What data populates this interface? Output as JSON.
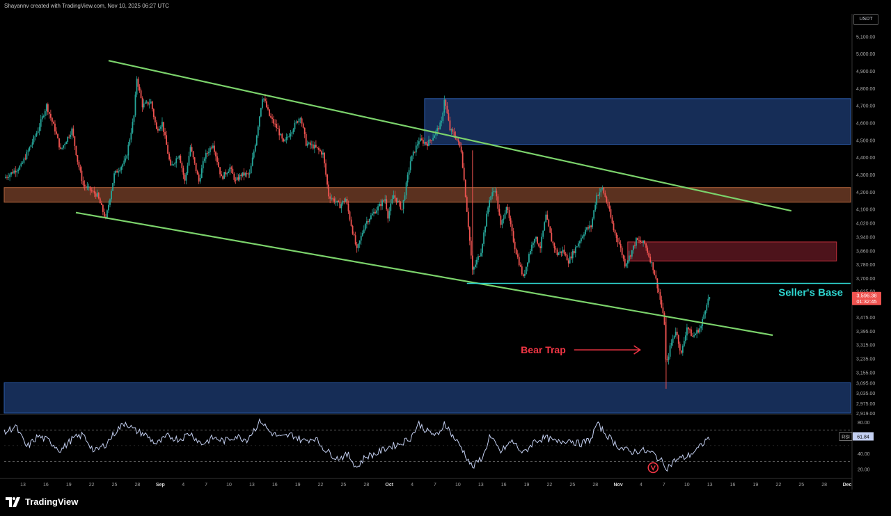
{
  "header": {
    "attribution": "Shayannv created with TradingView.com, Nov 10, 2025 06:27 UTC"
  },
  "footer": {
    "brand": "TradingView"
  },
  "colors": {
    "up": "#26a69a",
    "down": "#ef5350",
    "trendline": "#7bd26b",
    "blue_zone": "#1a3566",
    "brown_zone": "#6b3a24",
    "red_zone": "#5b1620",
    "cyan": "#2ed6d0",
    "rsi": "#c4d0f2",
    "trap": "#f23645",
    "background": "#000000"
  },
  "chart_data": {
    "type": "candlestick",
    "symbol_currency": "USDT",
    "price_axis": {
      "ylim": [
        2919,
        5150
      ],
      "ticks": [
        "5,100.00",
        "5,000.00",
        "4,900.00",
        "4,800.00",
        "4,700.00",
        "4,600.00",
        "4,500.00",
        "4,400.00",
        "4,300.00",
        "4,200.00",
        "4,100.00",
        "4,020.00",
        "3,940.00",
        "3,860.00",
        "3,780.00",
        "3,700.00",
        "3,625.00",
        "3,475.00",
        "3,395.00",
        "3,315.00",
        "3,235.00",
        "3,155.00",
        "3,095.00",
        "3,035.00",
        "2,975.00",
        "2,919.00"
      ],
      "tick_values": [
        5100,
        5000,
        4900,
        4800,
        4700,
        4600,
        4500,
        4400,
        4300,
        4200,
        4100,
        4020,
        3940,
        3860,
        3780,
        3700,
        3625,
        3475,
        3395,
        3315,
        3235,
        3155,
        3095,
        3035,
        2975,
        2919
      ]
    },
    "time_axis": {
      "ticks": [
        "13",
        "16",
        "19",
        "22",
        "25",
        "28",
        "Sep",
        "4",
        "7",
        "10",
        "13",
        "16",
        "19",
        "22",
        "25",
        "28",
        "Oct",
        "4",
        "7",
        "10",
        "13",
        "16",
        "19",
        "22",
        "25",
        "28",
        "Nov",
        "4",
        "7",
        "10",
        "13",
        "16",
        "19",
        "22",
        "25",
        "28",
        "Dec"
      ],
      "bold_ticks": [
        "Sep",
        "Oct",
        "Nov",
        "Dec"
      ]
    },
    "price_path": [
      [
        0,
        4280
      ],
      [
        3,
        4350
      ],
      [
        6,
        4560
      ],
      [
        7.5,
        4700
      ],
      [
        9,
        4560
      ],
      [
        10,
        4440
      ],
      [
        12,
        4560
      ],
      [
        13,
        4380
      ],
      [
        14,
        4240
      ],
      [
        16.5,
        4180
      ],
      [
        18,
        4040
      ],
      [
        19.5,
        4300
      ],
      [
        21.5,
        4380
      ],
      [
        23,
        4640
      ],
      [
        23.5,
        4860
      ],
      [
        24.5,
        4700
      ],
      [
        26,
        4720
      ],
      [
        27,
        4560
      ],
      [
        28,
        4600
      ],
      [
        29.5,
        4340
      ],
      [
        31,
        4420
      ],
      [
        32,
        4260
      ],
      [
        33,
        4460
      ],
      [
        34.5,
        4260
      ],
      [
        35.5,
        4400
      ],
      [
        37,
        4480
      ],
      [
        38.5,
        4280
      ],
      [
        40,
        4340
      ],
      [
        41,
        4260
      ],
      [
        42,
        4300
      ],
      [
        43.5,
        4300
      ],
      [
        44.5,
        4480
      ],
      [
        45.8,
        4760
      ],
      [
        47,
        4640
      ],
      [
        48.5,
        4560
      ],
      [
        49.5,
        4480
      ],
      [
        51,
        4560
      ],
      [
        52.5,
        4640
      ],
      [
        53.5,
        4480
      ],
      [
        55,
        4460
      ],
      [
        56.5,
        4420
      ],
      [
        57.5,
        4180
      ],
      [
        59.5,
        4120
      ],
      [
        60.5,
        4160
      ],
      [
        62.5,
        3860
      ],
      [
        64,
        4020
      ],
      [
        65.5,
        4080
      ],
      [
        66.5,
        4120
      ],
      [
        67.5,
        4160
      ],
      [
        68,
        4060
      ],
      [
        69,
        4180
      ],
      [
        70.5,
        4100
      ],
      [
        72,
        4380
      ],
      [
        73.5,
        4500
      ],
      [
        75,
        4480
      ],
      [
        76,
        4520
      ],
      [
        77.5,
        4600
      ],
      [
        78,
        4740
      ],
      [
        79,
        4560
      ],
      [
        80,
        4520
      ],
      [
        81,
        4440
      ],
      [
        81.7,
        4200
      ],
      [
        83,
        3740
      ],
      [
        84.5,
        3860
      ],
      [
        86,
        4160
      ],
      [
        87,
        4220
      ],
      [
        88,
        4000
      ],
      [
        89,
        4120
      ],
      [
        90.5,
        3880
      ],
      [
        92,
        3700
      ],
      [
        93,
        3840
      ],
      [
        94,
        3940
      ],
      [
        95,
        3880
      ],
      [
        96,
        4060
      ],
      [
        97,
        3920
      ],
      [
        98,
        3840
      ],
      [
        99,
        3860
      ],
      [
        100,
        3800
      ],
      [
        101,
        3860
      ],
      [
        102,
        3920
      ],
      [
        103,
        3980
      ],
      [
        104,
        4000
      ],
      [
        105,
        4180
      ],
      [
        106,
        4220
      ],
      [
        107,
        4120
      ],
      [
        108,
        3980
      ],
      [
        109,
        3900
      ],
      [
        110,
        3780
      ],
      [
        111,
        3840
      ],
      [
        112,
        3920
      ],
      [
        113.5,
        3900
      ],
      [
        115,
        3760
      ],
      [
        116,
        3620
      ],
      [
        117,
        3440
      ],
      [
        117.3,
        3180
      ],
      [
        118,
        3300
      ],
      [
        119,
        3400
      ],
      [
        120,
        3260
      ],
      [
        121,
        3420
      ],
      [
        122,
        3360
      ],
      [
        123.5,
        3420
      ],
      [
        124.5,
        3560
      ],
      [
        125.2,
        3600
      ]
    ],
    "wicks": [
      [
        83,
        4440,
        3720
      ],
      [
        117.3,
        3475,
        3060
      ]
    ],
    "last_price": {
      "value": "3,596.38",
      "countdown": "01:32:45"
    },
    "rsi": {
      "label": "RSI",
      "value": "61.84",
      "ylim": [
        10,
        88
      ],
      "ticks": [
        "80.00",
        "40.00",
        "20.00"
      ],
      "tick_values": [
        80,
        40,
        20
      ],
      "levels": [
        70,
        30
      ],
      "path": [
        [
          0,
          66
        ],
        [
          2,
          75
        ],
        [
          4,
          48
        ],
        [
          6,
          62
        ],
        [
          8,
          56
        ],
        [
          10,
          44
        ],
        [
          12,
          58
        ],
        [
          14,
          64
        ],
        [
          16,
          42
        ],
        [
          18,
          52
        ],
        [
          20,
          70
        ],
        [
          21.5,
          80
        ],
        [
          23,
          70
        ],
        [
          25,
          64
        ],
        [
          27,
          52
        ],
        [
          29,
          62
        ],
        [
          31,
          58
        ],
        [
          33,
          66
        ],
        [
          35,
          52
        ],
        [
          37,
          60
        ],
        [
          39,
          56
        ],
        [
          41,
          62
        ],
        [
          43,
          58
        ],
        [
          45.5,
          82
        ],
        [
          47,
          68
        ],
        [
          49,
          60
        ],
        [
          51,
          64
        ],
        [
          53,
          56
        ],
        [
          55,
          60
        ],
        [
          57,
          44
        ],
        [
          59,
          34
        ],
        [
          61,
          38
        ],
        [
          62.5,
          22
        ],
        [
          64,
          36
        ],
        [
          66,
          40
        ],
        [
          68,
          48
        ],
        [
          70,
          52
        ],
        [
          72,
          60
        ],
        [
          73.5,
          78
        ],
        [
          75,
          68
        ],
        [
          77,
          62
        ],
        [
          78,
          80
        ],
        [
          79.5,
          62
        ],
        [
          81,
          48
        ],
        [
          83,
          22
        ],
        [
          85,
          38
        ],
        [
          86,
          62
        ],
        [
          88,
          42
        ],
        [
          90,
          56
        ],
        [
          92,
          40
        ],
        [
          94,
          56
        ],
        [
          96,
          60
        ],
        [
          98,
          54
        ],
        [
          100,
          58
        ],
        [
          102,
          52
        ],
        [
          104,
          58
        ],
        [
          105,
          78
        ],
        [
          107,
          62
        ],
        [
          109,
          48
        ],
        [
          111,
          42
        ],
        [
          113,
          44
        ],
        [
          115,
          40
        ],
        [
          116.5,
          30
        ],
        [
          117.5,
          22
        ],
        [
          119,
          32
        ],
        [
          121,
          36
        ],
        [
          123,
          46
        ],
        [
          124.5,
          58
        ],
        [
          125.2,
          62
        ]
      ]
    },
    "annotations": [
      {
        "type": "zone",
        "color": "blue",
        "x": [
          74.5,
          150
        ],
        "y": [
          4475,
          4740
        ]
      },
      {
        "type": "zone",
        "color": "brown",
        "x": [
          0,
          150
        ],
        "y": [
          4140,
          4225
        ]
      },
      {
        "type": "zone",
        "color": "red",
        "x": [
          110.5,
          147.5
        ],
        "y": [
          3800,
          3910
        ]
      },
      {
        "type": "zone",
        "color": "blue",
        "x": [
          0,
          150
        ],
        "y": [
          2919,
          3095
        ]
      },
      {
        "type": "trendline",
        "from": [
          18.5,
          4960
        ],
        "to": [
          139.5,
          4090
        ]
      },
      {
        "type": "trendline",
        "from": [
          12.7,
          4080
        ],
        "to": [
          136.2,
          3370
        ]
      },
      {
        "type": "level",
        "label": "Seller's Base",
        "value": 3670,
        "x": [
          82,
          150
        ]
      },
      {
        "type": "arrow",
        "label": "Bear Trap",
        "from": [
          101,
          3285
        ],
        "to": [
          112.7,
          3285
        ]
      },
      {
        "type": "rsi_circle",
        "x": 115,
        "y": 22
      }
    ]
  }
}
